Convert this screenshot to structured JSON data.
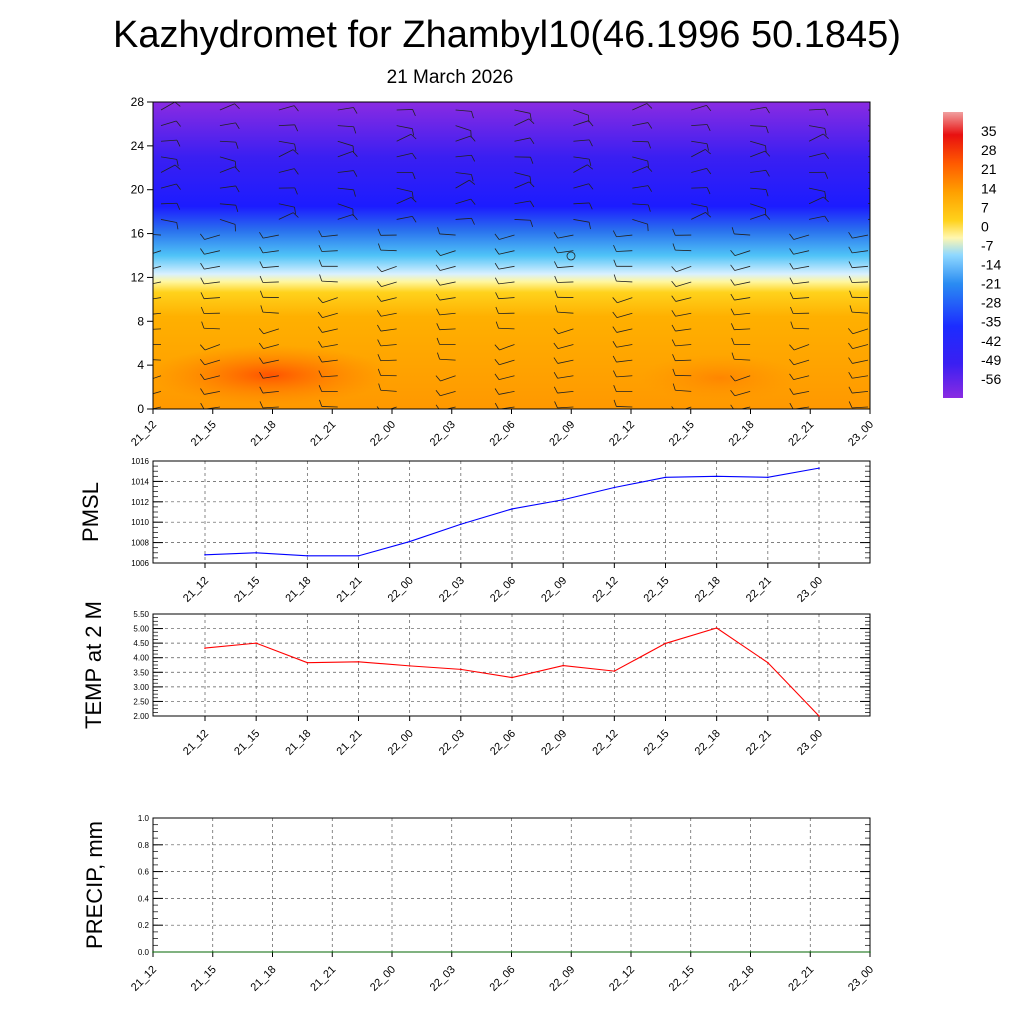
{
  "title": "Kazhydromet for Zhambyl10(46.1996 50.1845)",
  "subtitle": "21 March 2026",
  "colors": {
    "pmsl_line": "#0000ff",
    "temp_line": "#ff0000",
    "precip_line": "#006400",
    "grid": "#000000"
  },
  "chart_data": [
    {
      "type": "heatmap",
      "name": "temperature-wind-cross-section",
      "categories": [
        "21_12",
        "21_15",
        "21_18",
        "21_21",
        "22_00",
        "22_03",
        "22_06",
        "22_09",
        "22_12",
        "22_15",
        "22_18",
        "22_21",
        "23_00"
      ],
      "y_ticks": [
        "0",
        "4",
        "8",
        "12",
        "16",
        "20",
        "24",
        "28"
      ],
      "ylim": [
        0,
        28
      ],
      "colorbar_labels": [
        "35",
        "28",
        "21",
        "14",
        "7",
        "0",
        "-7",
        "-14",
        "-21",
        "-28",
        "-35",
        "-42",
        "-49",
        "-56"
      ],
      "colorbar_range": [
        -63,
        42
      ],
      "overlay": "wind barbs",
      "grid": false
    },
    {
      "type": "line",
      "name": "pmsl",
      "ylabel": "PMSL",
      "categories": [
        "21_12",
        "21_15",
        "21_18",
        "21_21",
        "22_00",
        "22_03",
        "22_06",
        "22_09",
        "22_12",
        "22_15",
        "22_18",
        "22_21",
        "23_00"
      ],
      "series": [
        {
          "values": [
            1006.8,
            1007.0,
            1006.7,
            1006.7,
            1008.1,
            1009.8,
            1011.3,
            1012.2,
            1013.4,
            1014.4,
            1014.5,
            1014.4,
            1015.3
          ]
        }
      ],
      "ylim": [
        1006,
        1016
      ],
      "y_ticks": [
        "1006",
        "1008",
        "1010",
        "1012",
        "1014",
        "1016"
      ],
      "grid": true
    },
    {
      "type": "line",
      "name": "temp-2m",
      "ylabel": "TEMP at 2 M",
      "categories": [
        "21_12",
        "21_15",
        "21_18",
        "21_21",
        "22_00",
        "22_03",
        "22_06",
        "22_09",
        "22_12",
        "22_15",
        "22_18",
        "22_21",
        "23_00"
      ],
      "series": [
        {
          "values": [
            4.33,
            4.5,
            3.83,
            3.86,
            3.72,
            3.6,
            3.32,
            3.73,
            3.54,
            4.49,
            5.02,
            3.83,
            2.0
          ]
        }
      ],
      "ylim": [
        2.0,
        5.5
      ],
      "y_ticks": [
        "2.00",
        "2.50",
        "3.00",
        "3.50",
        "4.00",
        "4.50",
        "5.00",
        "5.50"
      ],
      "grid": true
    },
    {
      "type": "line",
      "name": "precip",
      "ylabel": "PRECIP, mm",
      "categories": [
        "21_12",
        "21_15",
        "21_18",
        "21_21",
        "22_00",
        "22_03",
        "22_06",
        "22_09",
        "22_12",
        "22_15",
        "22_18",
        "22_21",
        "23_00"
      ],
      "series": [
        {
          "values": [
            0,
            0,
            0,
            0,
            0,
            0,
            0,
            0,
            0,
            0,
            0,
            0,
            0
          ]
        }
      ],
      "ylim": [
        0,
        1.0
      ],
      "y_ticks": [
        "0.0",
        "0.2",
        "0.4",
        "0.6",
        "0.8",
        "1.0"
      ],
      "grid": true
    }
  ]
}
